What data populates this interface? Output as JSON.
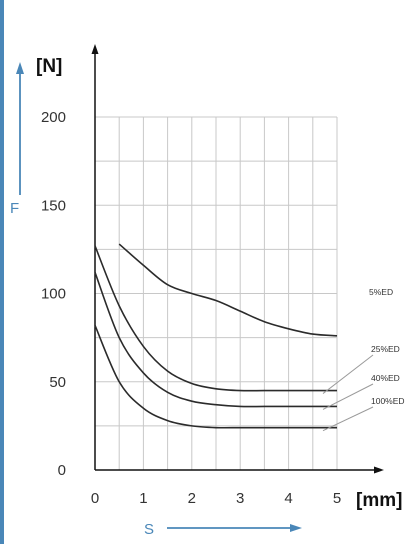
{
  "colors": {
    "frame": "#4a87b8",
    "curve": "#2b2b2b",
    "grid": "#c8c8c8",
    "axis": "#111111",
    "leader": "#9a9a9a"
  },
  "labels": {
    "y_unit": "[N]",
    "x_unit": "[mm]",
    "force_symbol": "F",
    "stroke_symbol": "S"
  },
  "chart_data": {
    "type": "line",
    "xlabel": "[mm]",
    "ylabel": "[N]",
    "xlim": [
      0,
      5
    ],
    "ylim": [
      0,
      200
    ],
    "x_ticks": [
      "0",
      "1",
      "2",
      "3",
      "4",
      "5"
    ],
    "y_ticks": [
      "0",
      "50",
      "100",
      "150",
      "200"
    ],
    "grid": true,
    "series": [
      {
        "name": "5%ED",
        "x": [
          0.5,
          1,
          1.5,
          2,
          2.5,
          3,
          3.5,
          4,
          4.5,
          5
        ],
        "y": [
          128,
          116,
          105,
          100,
          96,
          90,
          84,
          80,
          77,
          76
        ]
      },
      {
        "name": "25%ED",
        "x": [
          0,
          0.5,
          1,
          1.5,
          2,
          2.5,
          3,
          3.5,
          4,
          4.5,
          5
        ],
        "y": [
          127,
          93,
          70,
          56,
          49,
          46,
          45,
          45,
          45,
          45,
          45
        ]
      },
      {
        "name": "40%ED",
        "x": [
          0,
          0.5,
          1,
          1.5,
          2,
          2.5,
          3,
          3.5,
          4,
          4.5,
          5
        ],
        "y": [
          112,
          75,
          55,
          44,
          39,
          37,
          36,
          36,
          36,
          36,
          36
        ]
      },
      {
        "name": "100%ED",
        "x": [
          0,
          0.5,
          1,
          1.5,
          2,
          2.5,
          3,
          3.5,
          4,
          4.5,
          5
        ],
        "y": [
          82,
          50,
          35,
          28,
          25,
          24,
          24,
          24,
          24,
          24,
          24
        ]
      }
    ]
  }
}
